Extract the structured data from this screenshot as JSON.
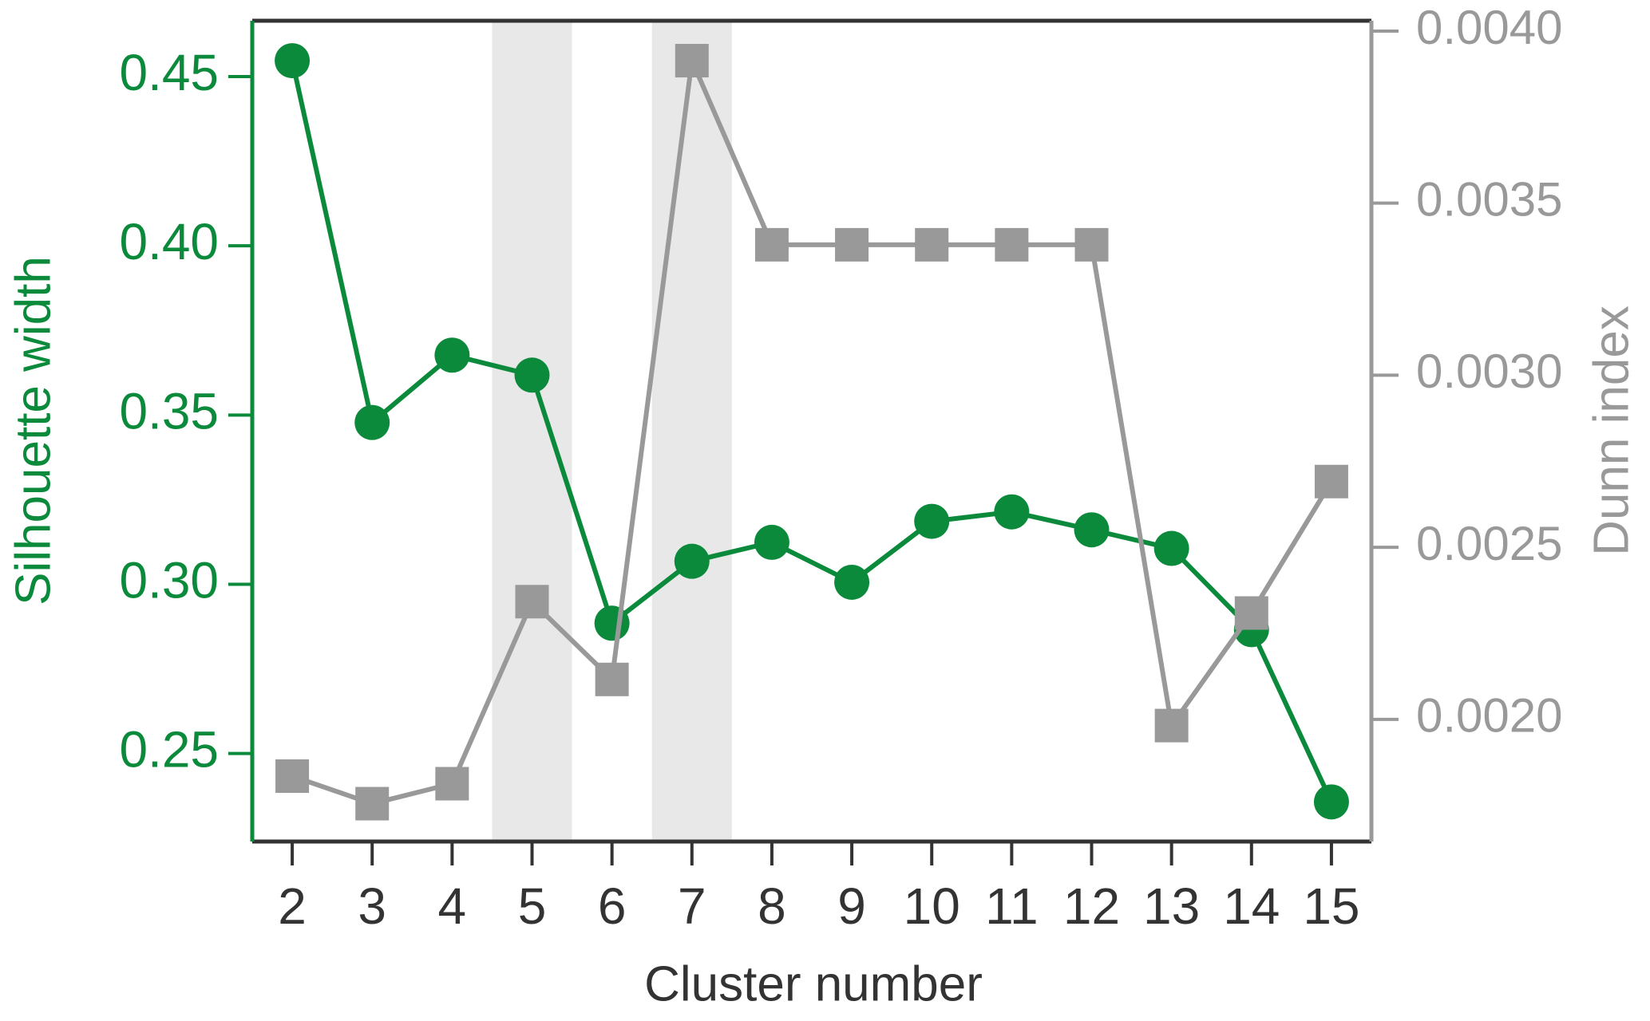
{
  "chart_data": {
    "type": "line",
    "x_label": "Cluster number",
    "y_label": "Silhouette width",
    "y2_label": "Dunn index",
    "x": [
      2,
      3,
      4,
      5,
      6,
      7,
      8,
      9,
      10,
      11,
      12,
      13,
      14,
      15
    ],
    "xlim": [
      1.5,
      15.5
    ],
    "xticks": [
      2,
      3,
      4,
      5,
      6,
      7,
      8,
      9,
      10,
      11,
      12,
      13,
      14,
      15
    ],
    "ylim": [
      0.224,
      0.4665
    ],
    "yticks": [
      0.25,
      {
        "value": 0.3,
        "label": "0.30"
      },
      0.35,
      {
        "value": 0.4,
        "label": "0.40"
      },
      0.45
    ],
    "y2lim": [
      0.001645,
      0.00403
    ],
    "y2ticks": [
      {
        "value": 0.002,
        "label": "0.0020"
      },
      {
        "value": 0.0025,
        "label": "0.0025"
      },
      {
        "value": 0.003,
        "label": "0.0030"
      },
      {
        "value": 0.0035,
        "label": "0.0035"
      },
      {
        "value": 0.004,
        "label": "0.0040"
      }
    ],
    "highlight_ranges": [
      [
        4.5,
        5.5
      ],
      [
        6.5,
        7.5
      ]
    ],
    "series": [
      {
        "name": "Silhouette width",
        "color": "#0a8a3a",
        "marker": "circle",
        "values": [
          0.4547,
          0.3478,
          0.3677,
          0.3618,
          0.2885,
          0.3068,
          0.3124,
          0.3006,
          0.3186,
          0.3214,
          0.3161,
          0.3106,
          0.2866,
          0.2357
        ]
      },
      {
        "name": "Dunn index",
        "color": "#999999",
        "marker": "square",
        "axis": "y2",
        "values": [
          0.001835,
          0.001755,
          0.001813,
          0.002342,
          0.002116,
          0.003914,
          0.003379,
          0.003379,
          0.003379,
          0.003379,
          0.003379,
          0.001982,
          0.002309,
          0.002691
        ]
      }
    ]
  }
}
